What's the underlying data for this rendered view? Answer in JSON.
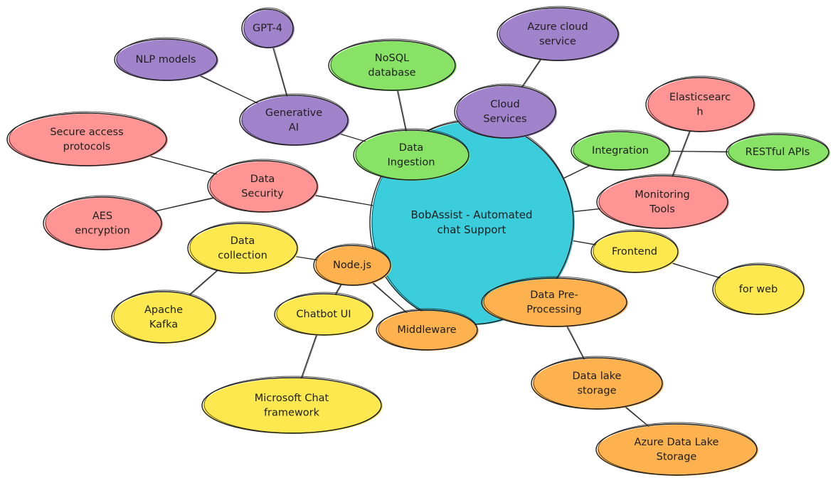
{
  "colors": {
    "center": "#3ccddc",
    "purple": "#a183cc",
    "green": "#87e266",
    "red": "#ff9494",
    "yellow": "#fde94f",
    "orange": "#fdb14f"
  },
  "center": {
    "lines": [
      "BobAssist - Automated",
      "chat Support"
    ]
  },
  "nodes": {
    "gpt4": {
      "lines": [
        "GPT-4"
      ]
    },
    "nlp_models": {
      "lines": [
        "NLP models"
      ]
    },
    "generative_ai": {
      "lines": [
        "Generative",
        "AI"
      ]
    },
    "nosql": {
      "lines": [
        "NoSQL",
        "database"
      ]
    },
    "azure_cloud": {
      "lines": [
        "Azure cloud",
        "service"
      ]
    },
    "cloud_services": {
      "lines": [
        "Cloud",
        "Services"
      ]
    },
    "data_ingestion": {
      "lines": [
        "Data",
        "Ingestion"
      ]
    },
    "elasticsearch": {
      "lines": [
        "Elasticsearc",
        "h"
      ]
    },
    "integration": {
      "lines": [
        "Integration"
      ]
    },
    "restful": {
      "lines": [
        "RESTful APIs"
      ]
    },
    "monitoring": {
      "lines": [
        "Monitoring",
        "Tools"
      ]
    },
    "secure_access": {
      "lines": [
        "Secure access",
        "protocols"
      ]
    },
    "data_security": {
      "lines": [
        "Data",
        "Security"
      ]
    },
    "aes": {
      "lines": [
        "AES",
        "encryption"
      ]
    },
    "data_collection": {
      "lines": [
        "Data",
        "collection"
      ]
    },
    "nodejs": {
      "lines": [
        "Node.js"
      ]
    },
    "apache_kafka": {
      "lines": [
        "Apache",
        "Kafka"
      ]
    },
    "chatbot_ui": {
      "lines": [
        "Chatbot UI"
      ]
    },
    "middleware": {
      "lines": [
        "Middleware"
      ]
    },
    "frontend": {
      "lines": [
        "Frontend"
      ]
    },
    "for_web": {
      "lines": [
        "for web"
      ]
    },
    "data_preprocessing": {
      "lines": [
        "Data Pre-",
        "Processing"
      ]
    },
    "data_lake": {
      "lines": [
        "Data lake",
        "storage"
      ]
    },
    "azure_data_lake": {
      "lines": [
        "Azure Data Lake",
        "Storage"
      ]
    },
    "ms_chat": {
      "lines": [
        "Microsoft Chat",
        "framework"
      ]
    }
  }
}
